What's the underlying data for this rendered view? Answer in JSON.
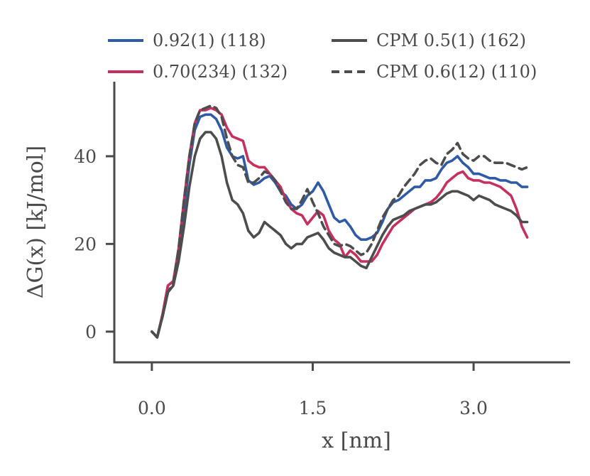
{
  "chart_data": {
    "type": "line",
    "xlabel": "x [nm]",
    "ylabel": "ΔG(x) [kJ/mol]",
    "xlim": [
      -0.35,
      3.9
    ],
    "ylim": [
      -7,
      57
    ],
    "xticks": [
      0.0,
      1.5,
      3.0
    ],
    "xtick_labels": [
      "0.0",
      "1.5",
      "3.0"
    ],
    "yticks": [
      0,
      20,
      40
    ],
    "ytick_labels": [
      "0",
      "20",
      "40"
    ],
    "grid": false,
    "legend_position": "top",
    "series": [
      {
        "name": "0.92(1) (118)",
        "color": "#2f5aa8",
        "dash": "solid",
        "x": [
          0.0,
          0.05,
          0.1,
          0.15,
          0.2,
          0.25,
          0.3,
          0.35,
          0.4,
          0.45,
          0.5,
          0.55,
          0.6,
          0.65,
          0.7,
          0.75,
          0.8,
          0.85,
          0.9,
          0.95,
          1.0,
          1.05,
          1.1,
          1.15,
          1.2,
          1.25,
          1.3,
          1.35,
          1.4,
          1.45,
          1.5,
          1.55,
          1.6,
          1.65,
          1.7,
          1.75,
          1.8,
          1.85,
          1.9,
          1.95,
          2.0,
          2.05,
          2.1,
          2.15,
          2.2,
          2.25,
          2.3,
          2.35,
          2.4,
          2.45,
          2.5,
          2.55,
          2.6,
          2.65,
          2.7,
          2.75,
          2.8,
          2.85,
          2.9,
          2.95,
          3.0,
          3.05,
          3.1,
          3.15,
          3.2,
          3.25,
          3.3,
          3.35,
          3.4,
          3.45,
          3.5
        ],
        "y": [
          0,
          -1.3,
          4,
          10.5,
          11.5,
          18,
          28,
          38,
          46,
          49,
          49.5,
          49.5,
          48.5,
          46,
          42,
          40,
          39.5,
          40,
          34.5,
          33.5,
          34,
          35,
          35.5,
          34,
          32,
          31,
          29,
          28,
          29,
          31,
          32,
          34,
          32,
          29,
          26,
          25,
          25.5,
          24,
          22,
          21,
          21,
          21.5,
          22.5,
          25,
          28,
          29.5,
          30,
          31,
          32,
          33,
          33,
          34.5,
          34.5,
          35,
          37,
          38.5,
          39,
          40,
          38.5,
          37.5,
          36,
          36,
          35.5,
          35,
          35,
          34.5,
          34.5,
          34,
          34,
          33,
          33
        ]
      },
      {
        "name": "0.70(234) (132)",
        "color": "#c7305e",
        "dash": "solid",
        "x": [
          0.0,
          0.05,
          0.1,
          0.15,
          0.2,
          0.25,
          0.3,
          0.35,
          0.4,
          0.45,
          0.5,
          0.55,
          0.6,
          0.65,
          0.7,
          0.75,
          0.8,
          0.85,
          0.9,
          0.95,
          1.0,
          1.05,
          1.1,
          1.15,
          1.2,
          1.25,
          1.3,
          1.35,
          1.4,
          1.45,
          1.5,
          1.55,
          1.6,
          1.65,
          1.7,
          1.75,
          1.8,
          1.85,
          1.9,
          1.95,
          2.0,
          2.05,
          2.1,
          2.15,
          2.2,
          2.25,
          2.3,
          2.35,
          2.4,
          2.45,
          2.5,
          2.55,
          2.6,
          2.65,
          2.7,
          2.75,
          2.8,
          2.85,
          2.9,
          2.95,
          3.0,
          3.05,
          3.1,
          3.15,
          3.2,
          3.25,
          3.3,
          3.35,
          3.4,
          3.45,
          3.5
        ],
        "y": [
          0,
          -1.3,
          4,
          10.5,
          11.5,
          19,
          30,
          40,
          47.5,
          50.5,
          50.5,
          51,
          50.5,
          49.5,
          46.5,
          44.5,
          44,
          43.5,
          39,
          38,
          37.5,
          37.5,
          36,
          34.5,
          33,
          30,
          28,
          27,
          26.5,
          24.5,
          26,
          27.5,
          26.5,
          23,
          21,
          20,
          17,
          18.5,
          17.5,
          16,
          16,
          16,
          17.5,
          20,
          22,
          24,
          25,
          26,
          27,
          28,
          28.5,
          29,
          29.5,
          30.5,
          32,
          34,
          35,
          36,
          36.5,
          35,
          34.5,
          34.5,
          34,
          34,
          33.5,
          33,
          32,
          31,
          28,
          24,
          21.5
        ]
      },
      {
        "name": "CPM 0.5(1) (162)",
        "color": "#4d4d4d",
        "dash": "solid",
        "x": [
          0.0,
          0.05,
          0.1,
          0.15,
          0.2,
          0.25,
          0.3,
          0.35,
          0.4,
          0.45,
          0.5,
          0.55,
          0.6,
          0.65,
          0.7,
          0.75,
          0.8,
          0.85,
          0.9,
          0.95,
          1.0,
          1.05,
          1.1,
          1.15,
          1.2,
          1.25,
          1.3,
          1.35,
          1.4,
          1.45,
          1.5,
          1.55,
          1.6,
          1.65,
          1.7,
          1.75,
          1.8,
          1.85,
          1.9,
          1.95,
          2.0,
          2.05,
          2.1,
          2.15,
          2.2,
          2.25,
          2.3,
          2.35,
          2.4,
          2.45,
          2.5,
          2.55,
          2.6,
          2.65,
          2.7,
          2.75,
          2.8,
          2.85,
          2.9,
          2.95,
          3.0,
          3.05,
          3.1,
          3.15,
          3.2,
          3.25,
          3.3,
          3.35,
          3.4,
          3.45,
          3.5
        ],
        "y": [
          0,
          -1.3,
          3.5,
          9,
          10.5,
          16,
          24,
          33,
          40,
          44,
          45.5,
          45.5,
          44,
          40,
          34,
          30,
          29,
          27,
          23,
          21.5,
          22.5,
          25,
          24,
          23,
          22,
          20,
          19,
          20,
          20,
          21.5,
          22,
          22.5,
          21,
          19,
          18,
          17.5,
          17,
          17,
          16,
          15,
          14.5,
          17,
          19.5,
          22,
          24,
          25.5,
          26,
          26.5,
          27.5,
          28,
          28.5,
          29,
          29,
          29.5,
          30.5,
          31.5,
          32,
          32,
          31.5,
          31,
          30,
          31,
          30.5,
          30,
          29,
          28.5,
          28,
          27.5,
          26.5,
          25,
          25
        ]
      },
      {
        "name": "CPM 0.6(12) (110)",
        "color": "#4d4d4d",
        "dash": "dashed",
        "x": [
          0.0,
          0.05,
          0.1,
          0.15,
          0.2,
          0.25,
          0.3,
          0.35,
          0.4,
          0.45,
          0.5,
          0.55,
          0.6,
          0.65,
          0.7,
          0.75,
          0.8,
          0.85,
          0.9,
          0.95,
          1.0,
          1.05,
          1.1,
          1.15,
          1.2,
          1.25,
          1.3,
          1.35,
          1.4,
          1.45,
          1.5,
          1.55,
          1.6,
          1.65,
          1.7,
          1.75,
          1.8,
          1.85,
          1.9,
          1.95,
          2.0,
          2.05,
          2.1,
          2.15,
          2.2,
          2.25,
          2.3,
          2.35,
          2.4,
          2.45,
          2.5,
          2.55,
          2.6,
          2.65,
          2.7,
          2.75,
          2.8,
          2.85,
          2.9,
          2.95,
          3.0,
          3.05,
          3.1,
          3.15,
          3.2,
          3.25,
          3.3,
          3.35,
          3.4,
          3.45,
          3.5
        ],
        "y": [
          0,
          -1.3,
          3.5,
          9,
          11,
          19,
          30,
          40,
          47.5,
          50.5,
          51,
          51.5,
          51,
          49,
          44,
          40,
          38,
          37.5,
          34,
          34,
          35,
          36.5,
          36,
          34.5,
          32,
          29.5,
          28,
          28,
          30,
          32.5,
          29.5,
          27,
          24,
          22,
          20,
          19.5,
          20,
          19.5,
          18.5,
          17.5,
          18,
          20,
          23,
          26,
          28,
          30,
          31,
          33,
          34.5,
          36,
          38,
          39,
          39.5,
          38.5,
          38,
          40.5,
          41.5,
          43,
          40.5,
          39.5,
          39,
          40,
          40,
          39,
          38.5,
          38.5,
          38.5,
          38,
          37.5,
          37,
          37.5
        ]
      }
    ]
  }
}
